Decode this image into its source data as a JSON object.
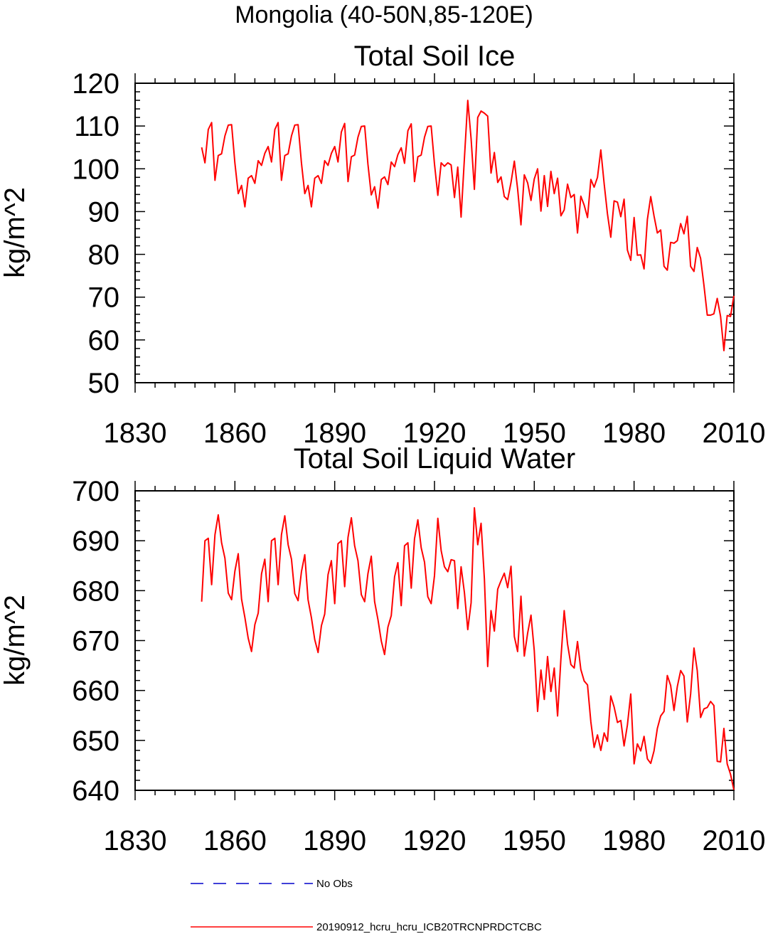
{
  "page_title": "Mongolia (40-50N,85-120E)",
  "legend": [
    {
      "label": "No Obs",
      "color": "#0000cc",
      "dash": true
    },
    {
      "label": "20190912_hcru_hcru_ICB20TRCNPRDCTCBC",
      "color": "#ff0000",
      "dash": false
    }
  ],
  "chart_data": [
    {
      "type": "line",
      "title": "Total Soil Ice",
      "xlabel": "",
      "ylabel": "kg/m^2",
      "xlim": [
        1830,
        2010
      ],
      "ylim": [
        50,
        120
      ],
      "xticks": [
        "1830",
        "1860",
        "1890",
        "1920",
        "1950",
        "1980",
        "2010"
      ],
      "yticks": [
        "50",
        "60",
        "70",
        "80",
        "90",
        "100",
        "110",
        "120"
      ],
      "series": [
        {
          "name": "20190912_hcru_hcru_ICB20TRCNPRDCTCBC",
          "color": "#ff0000",
          "x_start": 1850,
          "values": [
            105.0,
            101.4,
            109.2,
            110.8,
            97.3,
            103.1,
            103.5,
            107.7,
            110.2,
            110.3,
            101.4,
            94.2,
            96.1,
            91.1,
            97.8,
            98.4,
            96.6,
            101.9,
            100.8,
            103.6,
            105.2,
            101.6,
            109.2,
            110.8,
            97.3,
            103.1,
            103.5,
            107.7,
            110.2,
            110.3,
            101.4,
            94.2,
            96.1,
            91.1,
            97.8,
            98.4,
            96.6,
            101.9,
            100.8,
            103.6,
            105.2,
            101.6,
            108.6,
            110.6,
            97.0,
            102.8,
            103.2,
            107.4,
            109.9,
            110.0,
            101.1,
            93.9,
            95.8,
            90.8,
            97.5,
            98.1,
            96.3,
            101.6,
            100.5,
            103.3,
            104.9,
            101.3,
            108.9,
            110.5,
            97.0,
            102.8,
            103.2,
            107.4,
            109.9,
            110.0,
            101.1,
            93.8,
            101.4,
            100.6,
            101.4,
            100.9,
            93.3,
            100.4,
            88.7,
            102.5,
            116.0,
            107.0,
            95.2,
            112.0,
            113.5,
            113.0,
            112.3,
            99.0,
            103.8,
            96.8,
            98.1,
            93.5,
            92.8,
            96.8,
            101.8,
            95.3,
            86.9,
            98.6,
            96.7,
            92.6,
            97.6,
            100.0,
            90.1,
            98.4,
            91.2,
            99.4,
            94.2,
            97.8,
            89.0,
            90.4,
            96.4,
            93.3,
            94.0,
            85.0,
            93.6,
            91.5,
            88.6,
            97.5,
            95.7,
            98.0,
            104.4,
            96.5,
            89.5,
            84.0,
            92.5,
            92.2,
            88.8,
            92.9,
            81.0,
            78.6,
            88.6,
            79.8,
            79.9,
            76.6,
            88.2,
            93.5,
            89.0,
            85.0,
            85.7,
            77.2,
            76.3,
            82.8,
            82.6,
            83.2,
            87.2,
            84.8,
            88.9,
            77.2,
            76.0,
            81.6,
            79.1,
            72.8,
            65.8,
            65.8,
            66.1,
            69.7,
            65.5,
            57.5,
            65.7,
            65.5,
            70.3
          ]
        }
      ]
    },
    {
      "type": "line",
      "title": "Total Soil Liquid Water",
      "xlabel": "",
      "ylabel": "kg/m^2",
      "xlim": [
        1830,
        2010
      ],
      "ylim": [
        640,
        700
      ],
      "xticks": [
        "1830",
        "1860",
        "1890",
        "1920",
        "1950",
        "1980",
        "2010"
      ],
      "yticks": [
        "640",
        "650",
        "660",
        "670",
        "680",
        "690",
        "700"
      ],
      "series": [
        {
          "name": "20190912_hcru_hcru_ICB20TRCNPRDCTCBC",
          "color": "#ff0000",
          "x_start": 1850,
          "values": [
            677.8,
            690.0,
            690.5,
            681.2,
            691.2,
            695.2,
            689.6,
            686.5,
            679.5,
            678.2,
            683.9,
            687.4,
            678.3,
            674.6,
            670.5,
            667.8,
            673.2,
            675.5,
            683.4,
            686.3,
            677.8,
            690.0,
            690.5,
            681.2,
            691.2,
            695.0,
            689.2,
            686.3,
            679.4,
            678.0,
            683.8,
            687.2,
            678.2,
            674.6,
            670.2,
            667.6,
            673.0,
            675.3,
            683.2,
            686.0,
            677.4,
            689.4,
            690.0,
            680.8,
            690.7,
            694.6,
            689.0,
            686.0,
            679.2,
            677.8,
            683.4,
            686.9,
            677.8,
            674.2,
            669.9,
            667.2,
            672.7,
            675.0,
            682.8,
            685.6,
            677.0,
            689.0,
            689.6,
            680.5,
            690.4,
            694.2,
            688.6,
            685.7,
            678.8,
            677.4,
            683.0,
            694.5,
            688.0,
            684.8,
            683.8,
            686.2,
            686.0,
            676.4,
            684.8,
            679.6,
            672.2,
            677.6,
            696.6,
            689.2,
            693.5,
            682.3,
            664.8,
            676.0,
            671.9,
            680.3,
            682.0,
            683.5,
            680.6,
            684.9,
            670.8,
            667.8,
            678.9,
            666.9,
            671.5,
            675.1,
            668.0,
            655.8,
            664.1,
            658.2,
            666.8,
            659.8,
            664.5,
            654.9,
            666.4,
            676.0,
            669.3,
            665.2,
            664.5,
            669.8,
            664.2,
            661.9,
            661.1,
            653.7,
            648.6,
            651.1,
            648.0,
            651.5,
            649.8,
            658.9,
            656.7,
            653.6,
            654.0,
            648.9,
            653.1,
            659.3,
            645.3,
            649.3,
            647.9,
            650.8,
            646.3,
            645.4,
            647.9,
            652.4,
            654.9,
            655.8,
            663.0,
            661.0,
            656.0,
            660.8,
            664.0,
            662.9,
            653.7,
            659.3,
            668.5,
            664.0,
            654.6,
            656.3,
            656.6,
            657.8,
            657.0,
            645.8,
            645.7,
            652.4,
            645.3,
            643.2,
            640.1
          ]
        }
      ]
    }
  ]
}
